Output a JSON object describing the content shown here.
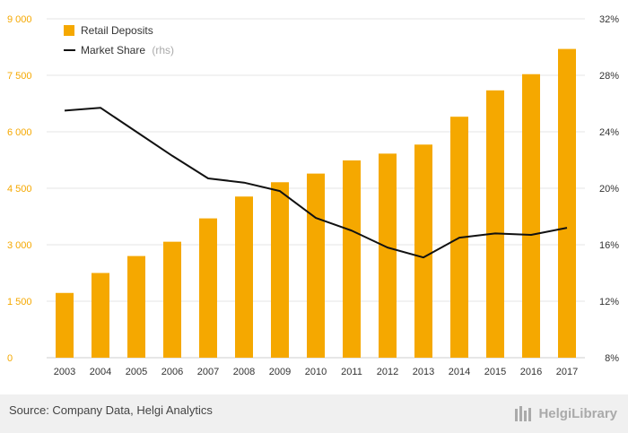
{
  "chart_data": {
    "type": "bar",
    "categories": [
      "2003",
      "2004",
      "2005",
      "2006",
      "2007",
      "2008",
      "2009",
      "2010",
      "2011",
      "2012",
      "2013",
      "2014",
      "2015",
      "2016",
      "2017"
    ],
    "series": [
      {
        "name": "Retail Deposits",
        "type": "bar",
        "axis": "left",
        "color": "#F5A800",
        "values": [
          1720,
          2250,
          2700,
          3080,
          3700,
          4280,
          4660,
          4890,
          5240,
          5420,
          5660,
          6400,
          7100,
          7530,
          8200
        ]
      },
      {
        "name": "Market Share",
        "type": "line",
        "axis": "right",
        "color": "#111111",
        "values": [
          25.5,
          25.7,
          24.0,
          22.3,
          20.7,
          20.4,
          19.8,
          17.9,
          17.0,
          15.8,
          15.1,
          16.5,
          16.8,
          16.7,
          17.2
        ]
      }
    ],
    "left_axis": {
      "ylim": [
        0,
        9000
      ],
      "ticks": [
        "0",
        "1 500",
        "3 000",
        "4 500",
        "6 000",
        "7 500",
        "9 000"
      ],
      "tick_values": [
        0,
        1500,
        3000,
        4500,
        6000,
        7500,
        9000
      ]
    },
    "right_axis": {
      "ylim": [
        8,
        32
      ],
      "ticks": [
        "8%",
        "12%",
        "16%",
        "20%",
        "24%",
        "28%",
        "32%"
      ],
      "tick_values": [
        8,
        12,
        16,
        20,
        24,
        28,
        32
      ]
    },
    "legend": {
      "placement": "top-left",
      "items": [
        {
          "label": "Retail Deposits",
          "suffix": ""
        },
        {
          "label": "Market Share",
          "suffix": "(rhs)"
        }
      ]
    },
    "grid": true
  },
  "footer": {
    "source": "Source: Company Data, Helgi Analytics",
    "brand": "HelgiLibrary"
  }
}
